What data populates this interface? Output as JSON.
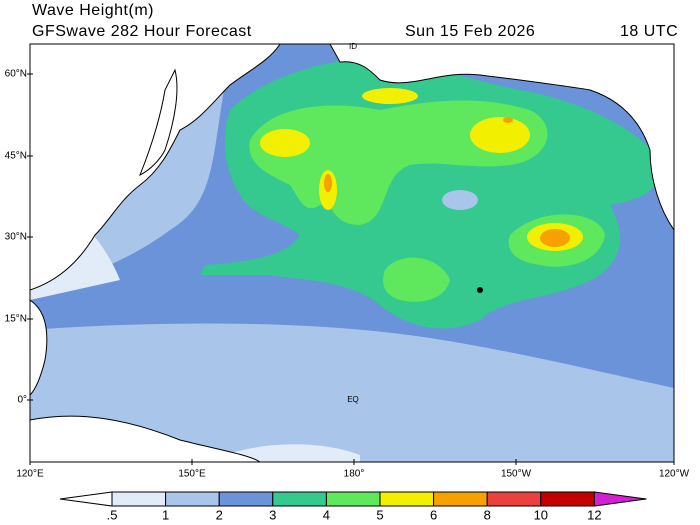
{
  "header": {
    "title": "Wave Height(m)",
    "model": "GFSwave 282 Hour Forecast",
    "date": "Sun 15 Feb 2026",
    "time": "18 UTC"
  },
  "map": {
    "lat_labels": [
      "60°N",
      "45°N",
      "30°N",
      "15°N",
      "0°"
    ],
    "lon_labels": [
      "120°E",
      "150°E",
      "180°",
      "150°W",
      "120°W"
    ],
    "place_labels": [
      "ID",
      "EQ"
    ]
  },
  "colorbar": {
    "levels": [
      {
        "value": 0.5,
        "label": ".5"
      },
      1,
      2,
      3,
      4,
      5,
      6,
      8,
      10,
      12
    ],
    "colors": [
      "#ffffff",
      "#e2ecf8",
      "#a9c5ea",
      "#6a93d9",
      "#35c88f",
      "#5fe85e",
      "#f2f000",
      "#f7a100",
      "#e8413e",
      "#c20000",
      "#d51fd2"
    ]
  }
}
